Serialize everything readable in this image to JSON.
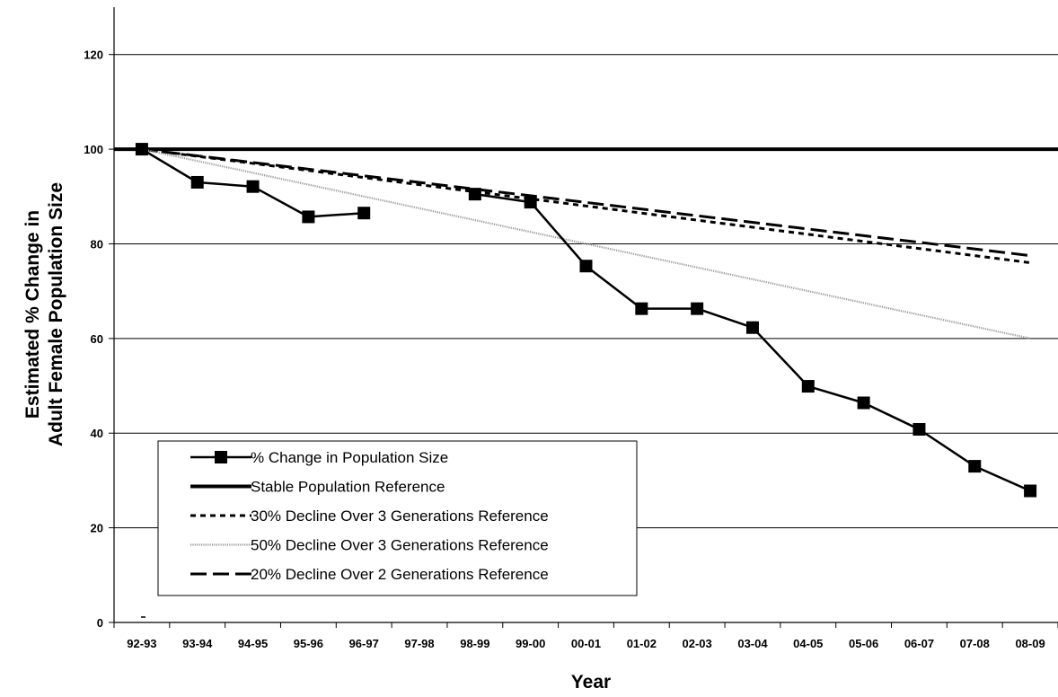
{
  "chart_data": {
    "type": "line",
    "title": "",
    "xlabel": "Year",
    "ylabel_lines": [
      "Estimated % Change in",
      "Adult Female Population Size"
    ],
    "categories": [
      "92-93",
      "93-94",
      "94-95",
      "95-96",
      "96-97",
      "97-98",
      "98-99",
      "99-00",
      "00-01",
      "01-02",
      "02-03",
      "03-04",
      "04-05",
      "05-06",
      "06-07",
      "07-08",
      "08-09"
    ],
    "ylim": [
      0,
      130
    ],
    "yticks": [
      0,
      20,
      40,
      60,
      80,
      100,
      120
    ],
    "grid": "horizontal",
    "legend_position": "bottom-left",
    "series": [
      {
        "name": "% Change in Population Size",
        "style": "solid-square-markers",
        "segments": [
          [
            [
              0,
              100
            ],
            [
              1,
              93
            ],
            [
              2,
              92.1
            ],
            [
              3,
              85.7
            ],
            [
              4,
              86.5
            ]
          ],
          [
            [
              6,
              90.5
            ],
            [
              7,
              88.8
            ],
            [
              8,
              75.3
            ],
            [
              9,
              66.3
            ],
            [
              10,
              66.3
            ],
            [
              11,
              62.3
            ],
            [
              12,
              49.9
            ],
            [
              13,
              46.4
            ],
            [
              14,
              40.8
            ],
            [
              15,
              33
            ],
            [
              16,
              27.8
            ]
          ]
        ]
      },
      {
        "name": "Stable Population Reference",
        "style": "thick-solid",
        "points": [
          [
            -0.5,
            100
          ],
          [
            16.9,
            100
          ]
        ]
      },
      {
        "name": "30% Decline Over 3 Generations Reference",
        "style": "short-dash",
        "points": [
          [
            0,
            100
          ],
          [
            16,
            76
          ]
        ]
      },
      {
        "name": "50% Decline Over 3 Generations Reference",
        "style": "gray-dotted",
        "points": [
          [
            0,
            100
          ],
          [
            16,
            60
          ]
        ]
      },
      {
        "name": "20% Decline Over 2 Generations Reference",
        "style": "long-dash",
        "points": [
          [
            0,
            100
          ],
          [
            16,
            77.5
          ]
        ]
      }
    ]
  }
}
